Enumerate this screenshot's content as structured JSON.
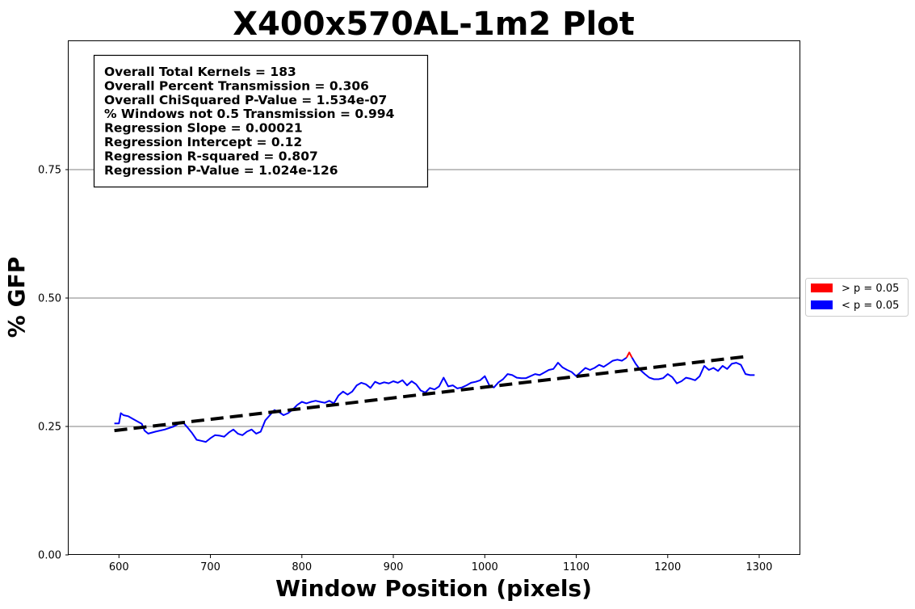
{
  "chart_data": {
    "type": "line",
    "title": "X400x570AL-1m2 Plot",
    "xlabel": "Window Position (pixels)",
    "ylabel": "% GFP",
    "xlim": [
      545,
      1345
    ],
    "ylim": [
      0,
      1.0
    ],
    "x_ticks": [
      600,
      700,
      800,
      900,
      1000,
      1100,
      1200,
      1300
    ],
    "y_ticks": [
      0.0,
      0.25,
      0.5,
      0.75
    ],
    "y_tick_labels": [
      "0.00",
      "0.25",
      "0.50",
      "0.75"
    ],
    "grid": "horizontal",
    "stats_box": [
      "Overall Total Kernels = 183",
      "Overall Percent Transmission = 0.306",
      "Overall ChiSquared P-Value = 1.534e-07",
      "% Windows not 0.5 Transmission = 0.994",
      "Regression Slope = 0.00021",
      "Regression Intercept = 0.12",
      "Regression R-squared = 0.807",
      "Regression P-Value = 1.024e-126"
    ],
    "legend": {
      "placement": "outside-right",
      "entries": [
        {
          "label": "> p = 0.05",
          "color": "#ff0000"
        },
        {
          "label": "< p = 0.05",
          "color": "#0000ff"
        }
      ]
    },
    "regression": {
      "x": [
        595,
        1285
      ],
      "y": [
        0.242,
        0.386
      ],
      "color": "#000000",
      "style": "dashed"
    },
    "series": [
      {
        "color": "#0000ff",
        "x": [
          595,
          600,
          602,
          605,
          610,
          615,
          620,
          625,
          628,
          632,
          640,
          650,
          660,
          665,
          670,
          675,
          680,
          685,
          690,
          695,
          700,
          705,
          710,
          715,
          720,
          725,
          730,
          735,
          740,
          745,
          750,
          755,
          760,
          765,
          770,
          775,
          780,
          785,
          790,
          795,
          800,
          805,
          810,
          815,
          820,
          825,
          830,
          835,
          840,
          845,
          850,
          855,
          860,
          865,
          870,
          875,
          880,
          885,
          890,
          895,
          900,
          905,
          910,
          915,
          920,
          925,
          930,
          935,
          940,
          945,
          950,
          955,
          960,
          965,
          970,
          975,
          980,
          985,
          990,
          995,
          1000,
          1005,
          1010,
          1015,
          1020,
          1025,
          1030,
          1035,
          1040,
          1045,
          1050,
          1055,
          1060,
          1065,
          1070,
          1075,
          1080,
          1085,
          1090,
          1095,
          1100,
          1105,
          1110,
          1115,
          1120,
          1125,
          1130,
          1135,
          1140,
          1145,
          1150,
          1155
        ],
        "y": [
          0.256,
          0.256,
          0.276,
          0.272,
          0.27,
          0.265,
          0.26,
          0.255,
          0.242,
          0.236,
          0.24,
          0.244,
          0.25,
          0.255,
          0.258,
          0.248,
          0.237,
          0.224,
          0.222,
          0.22,
          0.227,
          0.233,
          0.232,
          0.23,
          0.238,
          0.244,
          0.236,
          0.233,
          0.24,
          0.244,
          0.236,
          0.24,
          0.262,
          0.272,
          0.282,
          0.278,
          0.272,
          0.276,
          0.283,
          0.292,
          0.298,
          0.295,
          0.298,
          0.3,
          0.298,
          0.296,
          0.3,
          0.295,
          0.31,
          0.318,
          0.312,
          0.318,
          0.33,
          0.335,
          0.332,
          0.325,
          0.337,
          0.333,
          0.336,
          0.334,
          0.338,
          0.335,
          0.34,
          0.33,
          0.338,
          0.332,
          0.32,
          0.316,
          0.325,
          0.322,
          0.328,
          0.345,
          0.328,
          0.33,
          0.324,
          0.326,
          0.33,
          0.335,
          0.337,
          0.34,
          0.348,
          0.33,
          0.326,
          0.336,
          0.342,
          0.352,
          0.35,
          0.345,
          0.344,
          0.344,
          0.348,
          0.352,
          0.35,
          0.355,
          0.36,
          0.362,
          0.374,
          0.365,
          0.36,
          0.356,
          0.348,
          0.356,
          0.364,
          0.36,
          0.364,
          0.37,
          0.366,
          0.372,
          0.378,
          0.38,
          0.378,
          0.384
        ]
      },
      {
        "color": "#ff0000",
        "x": [
          1155,
          1158,
          1161
        ],
        "y": [
          0.384,
          0.394,
          0.384
        ]
      },
      {
        "color": "#0000ff",
        "x": [
          1161,
          1165,
          1170,
          1175,
          1180,
          1185,
          1190,
          1195,
          1200,
          1205,
          1210,
          1215,
          1220,
          1225,
          1230,
          1235,
          1240,
          1245,
          1250,
          1255,
          1260,
          1265,
          1270,
          1275,
          1280,
          1285,
          1290,
          1295
        ],
        "y": [
          0.384,
          0.372,
          0.36,
          0.352,
          0.345,
          0.342,
          0.342,
          0.344,
          0.352,
          0.346,
          0.334,
          0.338,
          0.345,
          0.343,
          0.34,
          0.348,
          0.368,
          0.36,
          0.364,
          0.358,
          0.368,
          0.362,
          0.372,
          0.374,
          0.37,
          0.352,
          0.35,
          0.35
        ]
      }
    ]
  }
}
